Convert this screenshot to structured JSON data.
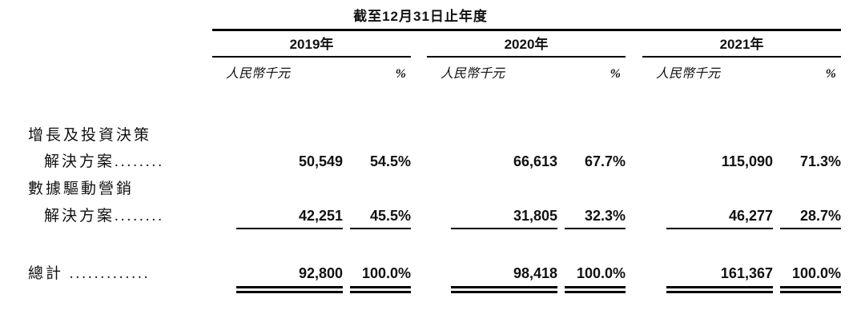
{
  "document": {
    "background": "#ffffff",
    "text_color": "#111111",
    "rule_color": "#000000"
  },
  "table": {
    "period_header": "截至12月31日止年度",
    "year_headers": [
      "2019年",
      "2020年",
      "2021年"
    ],
    "column_headers": {
      "amount": "人民幣千元",
      "percent": "%"
    },
    "rows": [
      {
        "label_line1": "增長及投資決策",
        "label_line2": "解決方案........",
        "values": [
          "50,549",
          "54.5%",
          "66,613",
          "67.7%",
          "115,090",
          "71.3%"
        ]
      },
      {
        "label_line1": "數據驅動營銷",
        "label_line2": "解決方案........",
        "values": [
          "42,251",
          "45.5%",
          "31,805",
          "32.3%",
          "46,277",
          "28.7%"
        ]
      }
    ],
    "total_row": {
      "label": "總計 .............",
      "values": [
        "92,800",
        "100.0%",
        "98,418",
        "100.0%",
        "161,367",
        "100.0%"
      ]
    }
  }
}
